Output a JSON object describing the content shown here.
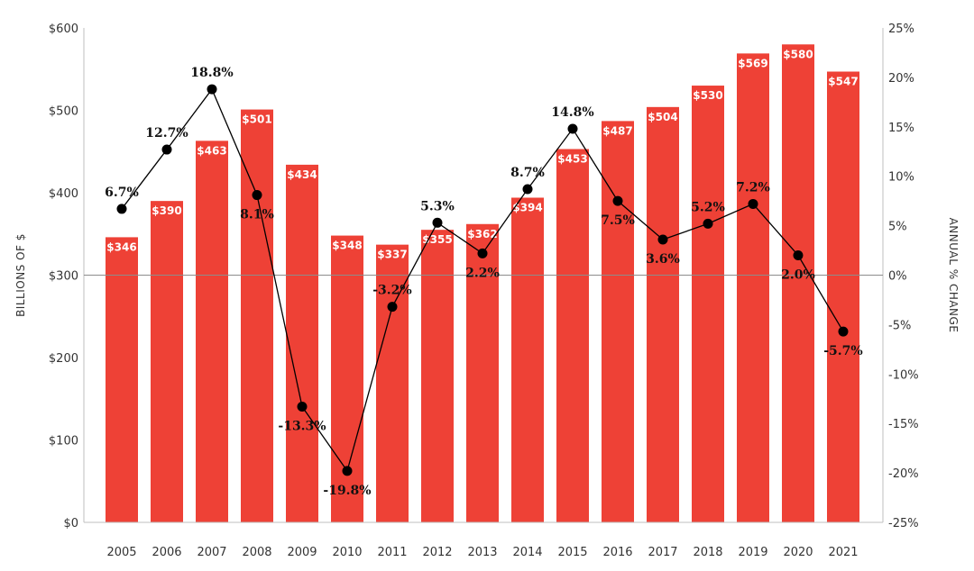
{
  "chart_data": {
    "type": "bar",
    "categories": [
      "2005",
      "2006",
      "2007",
      "2008",
      "2009",
      "2010",
      "2011",
      "2012",
      "2013",
      "2014",
      "2015",
      "2016",
      "2017",
      "2018",
      "2019",
      "2020",
      "2021"
    ],
    "series": [
      {
        "type": "bar",
        "axis": "left",
        "color": "#ee4136",
        "values": [
          346,
          390,
          463,
          501,
          434,
          348,
          337,
          355,
          362,
          394,
          453,
          487,
          504,
          530,
          569,
          580,
          547
        ],
        "labels": [
          "$346",
          "$390",
          "$463",
          "$501",
          "$434",
          "$348",
          "$337",
          "$355",
          "$362",
          "$394",
          "$453",
          "$487",
          "$504",
          "$530",
          "$569",
          "$580",
          "$547"
        ]
      },
      {
        "type": "line",
        "axis": "right",
        "color": "#000000",
        "values": [
          6.7,
          12.7,
          18.8,
          8.1,
          -13.3,
          -19.8,
          -3.2,
          5.3,
          2.2,
          8.7,
          14.8,
          7.5,
          3.6,
          5.2,
          7.2,
          2.0,
          -5.7
        ],
        "labels": [
          "6.7%",
          "12.7%",
          "18.8%",
          "8.1%",
          "-13.3%",
          "-19.8%",
          "-3.2%",
          "5.3%",
          "2.2%",
          "8.7%",
          "14.8%",
          "7.5%",
          "3.6%",
          "5.2%",
          "7.2%",
          "2.0%",
          "-5.7%"
        ]
      }
    ],
    "ylabel": "BILLIONS OF $",
    "y2label": "ANNUAL % CHANGE",
    "ylim": [
      0,
      600
    ],
    "y2lim": [
      -25,
      25
    ],
    "yticks": [
      "$0",
      "$100",
      "$200",
      "$300",
      "$400",
      "$500",
      "$600"
    ],
    "y2ticks": [
      "-25%",
      "-20%",
      "-15%",
      "-10%",
      "-5%",
      "0%",
      "5%",
      "10%",
      "15%",
      "20%",
      "25%"
    ],
    "grid": false,
    "legend": "none"
  }
}
